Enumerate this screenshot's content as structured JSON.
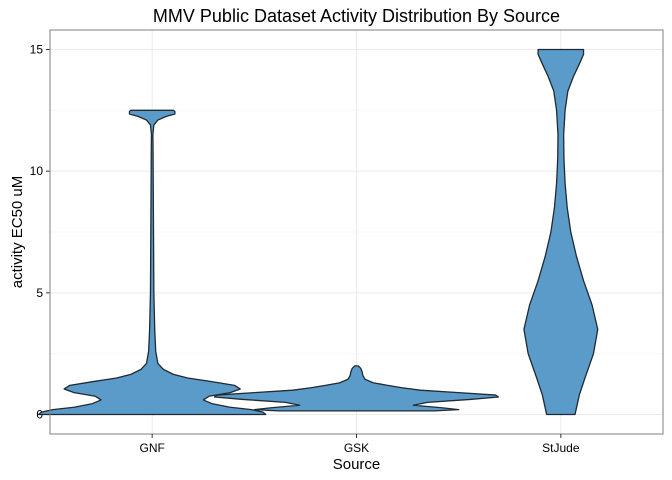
{
  "chart_data": {
    "type": "violin",
    "title": "MMV Public Dataset Activity Distribution By Source",
    "xlabel": "Source",
    "ylabel": "activity EC50 uM",
    "categories": [
      "GNF",
      "GSK",
      "StJude"
    ],
    "ylim": [
      -0.8,
      15.8
    ],
    "yticks": [
      0,
      5,
      10,
      15
    ],
    "grid": true,
    "fill_color": "#5b9bc9",
    "outline_color": "#1f2a33",
    "series": [
      {
        "category": "GNF",
        "profile": [
          [
            0.0,
            0.8
          ],
          [
            0.1,
            0.78
          ],
          [
            0.2,
            0.7
          ],
          [
            0.3,
            0.55
          ],
          [
            0.45,
            0.42
          ],
          [
            0.6,
            0.36
          ],
          [
            0.75,
            0.4
          ],
          [
            0.9,
            0.55
          ],
          [
            1.05,
            0.62
          ],
          [
            1.2,
            0.58
          ],
          [
            1.35,
            0.42
          ],
          [
            1.5,
            0.25
          ],
          [
            1.65,
            0.15
          ],
          [
            1.85,
            0.08
          ],
          [
            2.1,
            0.04
          ],
          [
            2.6,
            0.025
          ],
          [
            3.5,
            0.018
          ],
          [
            5.0,
            0.012
          ],
          [
            7.0,
            0.01
          ],
          [
            9.0,
            0.008
          ],
          [
            11.0,
            0.006
          ],
          [
            11.5,
            0.005
          ],
          [
            11.9,
            0.012
          ],
          [
            12.1,
            0.04
          ],
          [
            12.25,
            0.1
          ],
          [
            12.35,
            0.16
          ],
          [
            12.45,
            0.16
          ],
          [
            12.5,
            0.15
          ]
        ]
      },
      {
        "category": "GSK",
        "profile": [
          [
            0.15,
            0.55
          ],
          [
            0.2,
            0.72
          ],
          [
            0.28,
            0.6
          ],
          [
            0.38,
            0.4
          ],
          [
            0.5,
            0.5
          ],
          [
            0.62,
            0.8
          ],
          [
            0.72,
            1.0
          ],
          [
            0.8,
            0.98
          ],
          [
            0.9,
            0.72
          ],
          [
            1.0,
            0.45
          ],
          [
            1.1,
            0.32
          ],
          [
            1.2,
            0.22
          ],
          [
            1.3,
            0.12
          ],
          [
            1.45,
            0.06
          ],
          [
            1.6,
            0.045
          ],
          [
            1.75,
            0.04
          ],
          [
            1.9,
            0.03
          ],
          [
            2.0,
            0.012
          ]
        ]
      },
      {
        "category": "StJude",
        "profile": [
          [
            0.0,
            0.1
          ],
          [
            0.8,
            0.13
          ],
          [
            1.5,
            0.17
          ],
          [
            2.5,
            0.23
          ],
          [
            3.5,
            0.26
          ],
          [
            4.5,
            0.22
          ],
          [
            5.5,
            0.16
          ],
          [
            6.5,
            0.11
          ],
          [
            7.5,
            0.07
          ],
          [
            8.5,
            0.045
          ],
          [
            9.5,
            0.03
          ],
          [
            10.5,
            0.022
          ],
          [
            11.5,
            0.02
          ],
          [
            12.5,
            0.03
          ],
          [
            13.3,
            0.05
          ],
          [
            13.9,
            0.09
          ],
          [
            14.4,
            0.13
          ],
          [
            14.8,
            0.16
          ],
          [
            15.0,
            0.16
          ]
        ]
      }
    ]
  }
}
